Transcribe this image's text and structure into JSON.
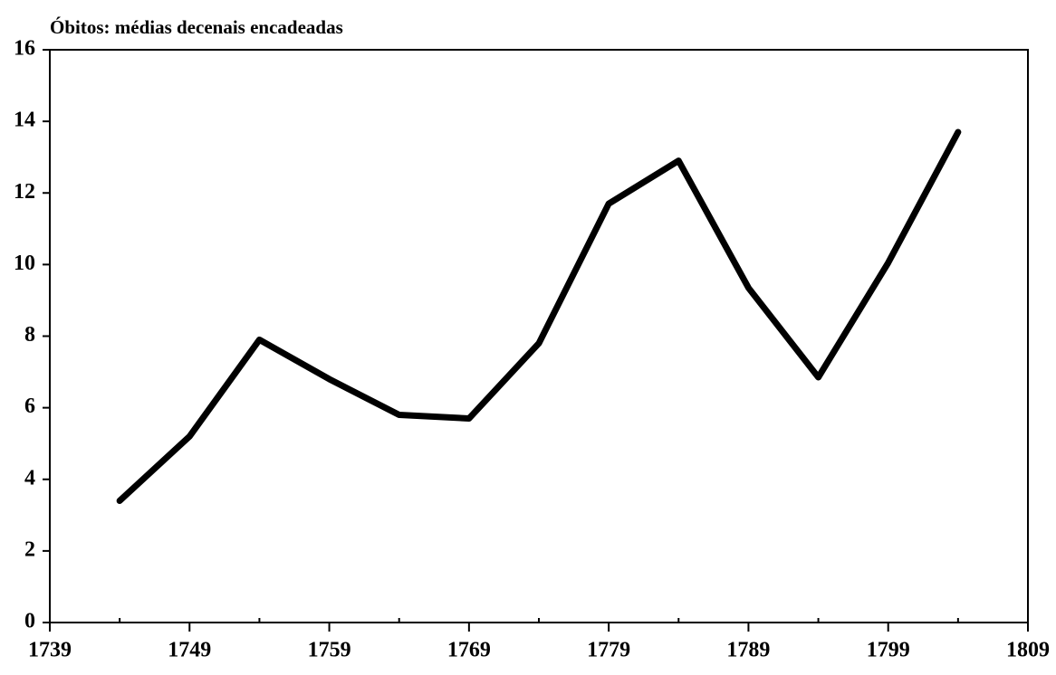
{
  "chart_data": {
    "type": "line",
    "title": "Óbitos: médias decenais encadeadas",
    "x": [
      1744,
      1749,
      1754,
      1759,
      1764,
      1769,
      1774,
      1779,
      1784,
      1789,
      1794,
      1799,
      1804
    ],
    "series": [
      {
        "name": "Óbitos",
        "color": "#000000",
        "values": [
          3.4,
          5.2,
          7.9,
          6.8,
          5.8,
          5.7,
          7.8,
          11.7,
          12.9,
          9.35,
          6.85,
          10.05,
          13.7
        ]
      }
    ],
    "xlim": [
      1739,
      1809
    ],
    "xticks": [
      1739,
      1749,
      1759,
      1769,
      1779,
      1789,
      1799,
      1809
    ],
    "xminorticks": [
      1744,
      1754,
      1764,
      1774,
      1784,
      1794,
      1804
    ],
    "ylim": [
      0,
      16
    ],
    "yticks": [
      0,
      2,
      4,
      6,
      8,
      10,
      12,
      14,
      16
    ],
    "grid": false,
    "legend": false
  }
}
